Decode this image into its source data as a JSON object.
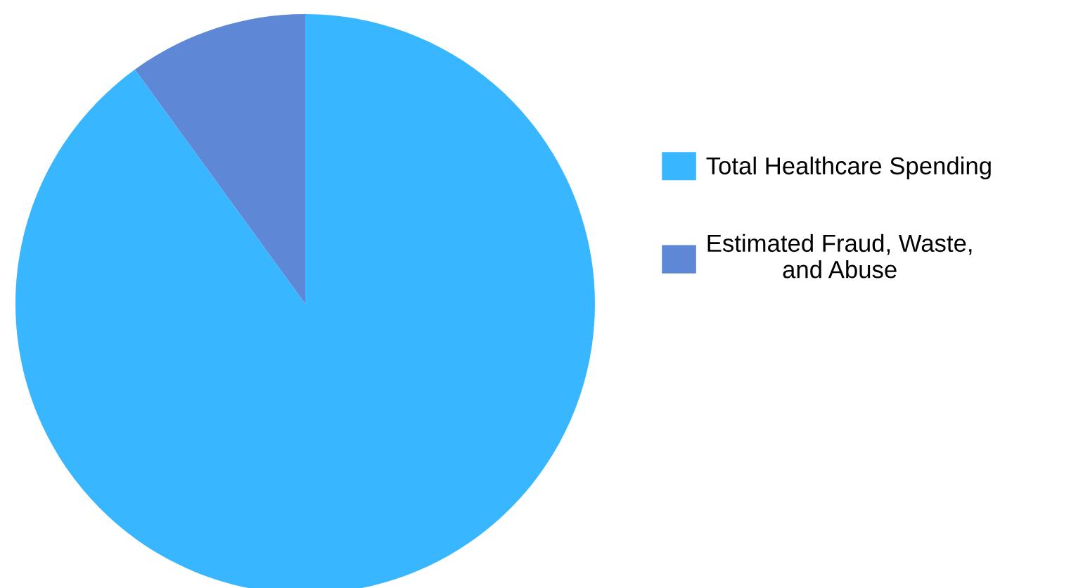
{
  "chart_data": {
    "type": "pie",
    "categories": [
      "Total Healthcare Spending",
      "Estimated Fraud, Waste,\nand Abuse"
    ],
    "values": [
      90,
      10
    ],
    "colors": [
      "#38b6ff",
      "#5e88d6"
    ],
    "legend": "right"
  }
}
